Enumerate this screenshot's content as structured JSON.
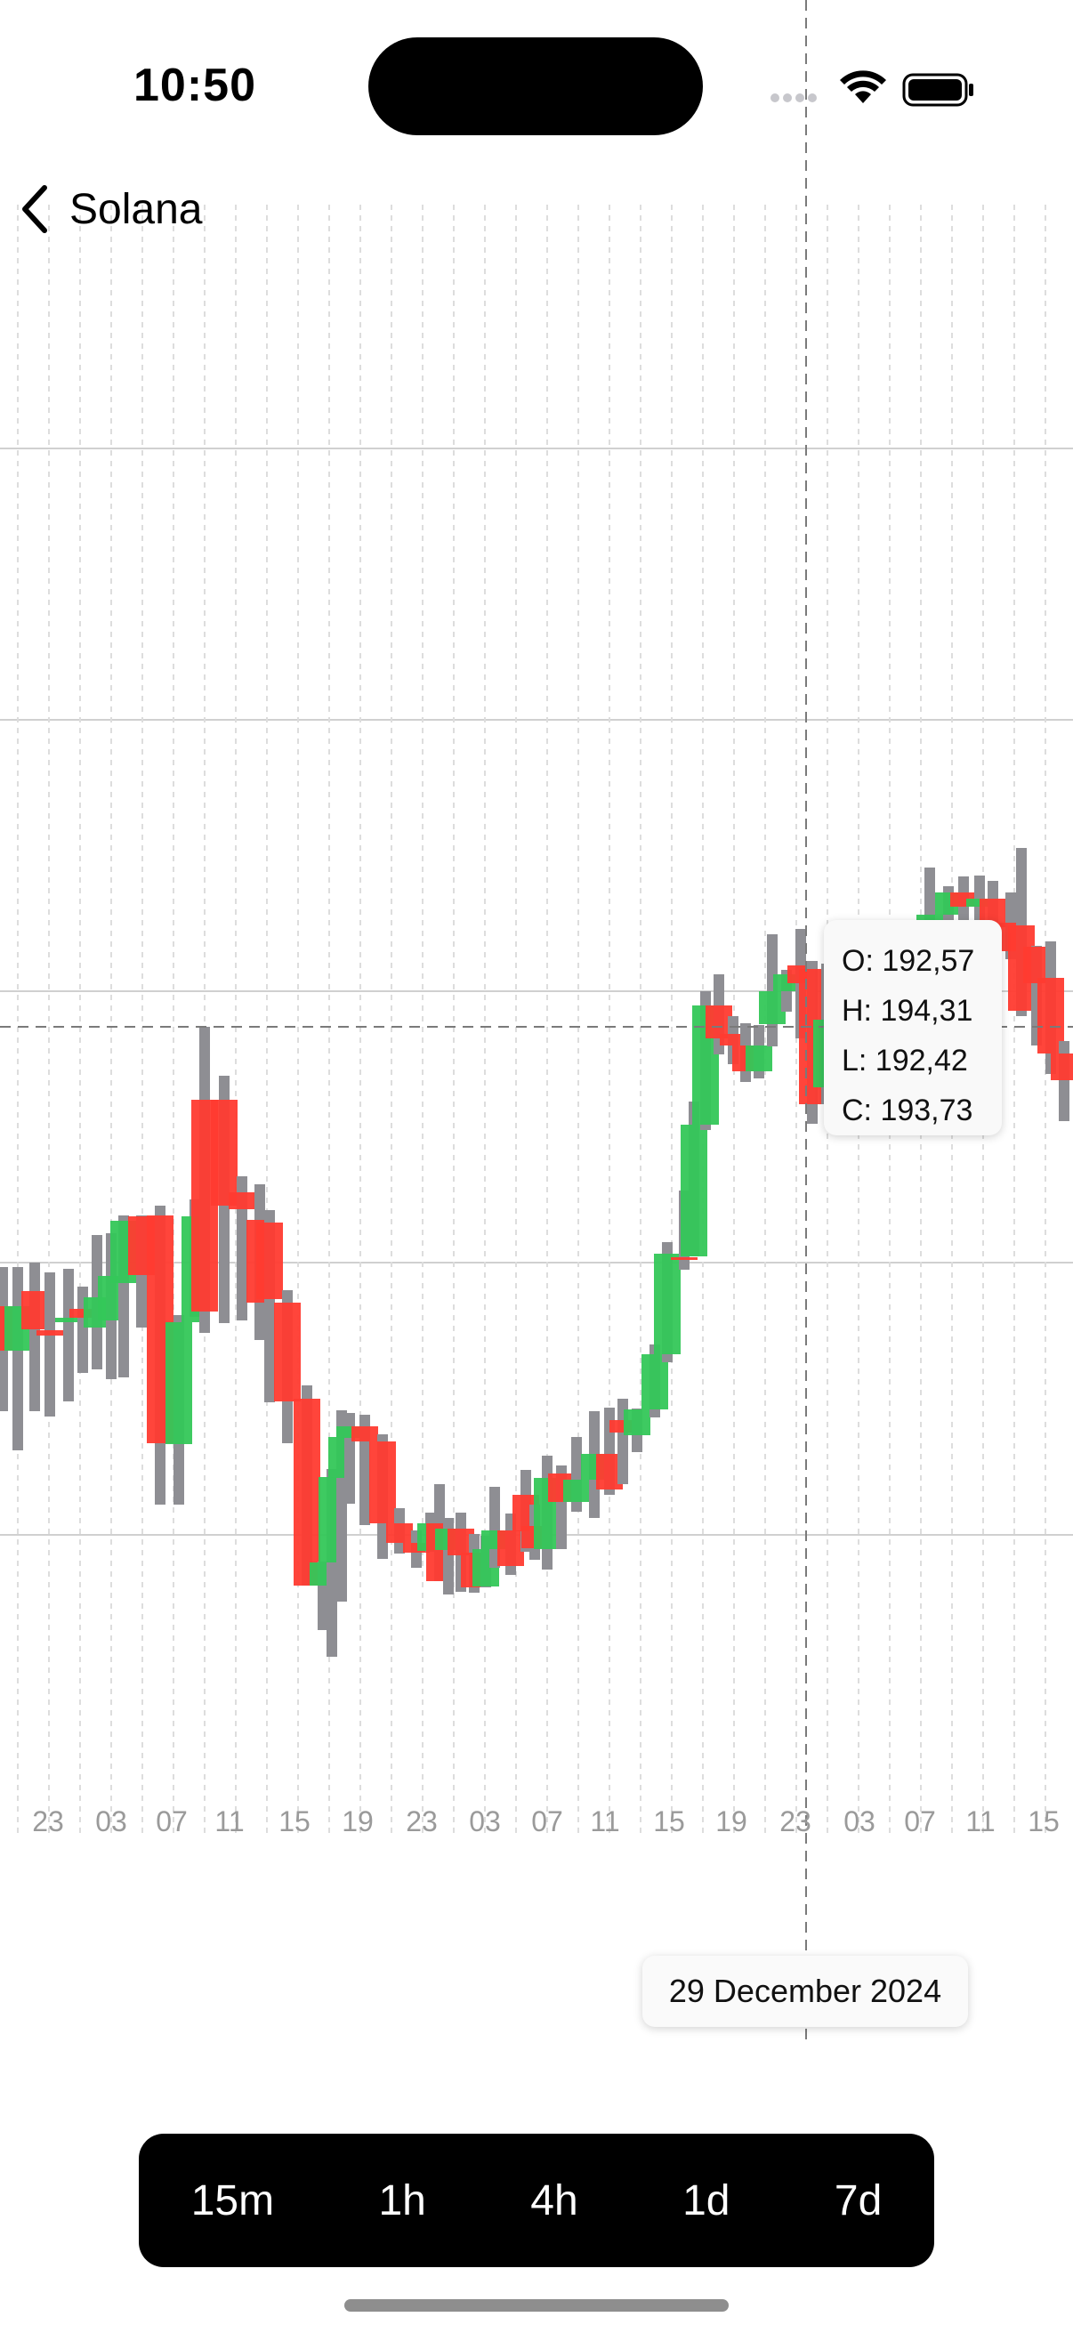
{
  "status_bar": {
    "time": "10:50"
  },
  "nav": {
    "back_title": "Solana"
  },
  "chart_data": {
    "type": "candlestick",
    "x_ticks": [
      "23",
      "03",
      "07",
      "11",
      "15",
      "19",
      "23",
      "03",
      "07",
      "11",
      "15",
      "19",
      "23",
      "03",
      "07",
      "11",
      "15"
    ],
    "tooltip": {
      "open": "O: 192,57",
      "high": "H: 194,31",
      "low": "L: 192,42",
      "close": "C: 193,73"
    },
    "crosshair_date": "29 December 2024",
    "colors": {
      "up": "#34c759",
      "down": "#ff3b30",
      "wick": "#8e8e93",
      "grid": "#d0d0d0"
    }
  },
  "timeframes": [
    "15m",
    "1h",
    "4h",
    "1d",
    "7d"
  ]
}
